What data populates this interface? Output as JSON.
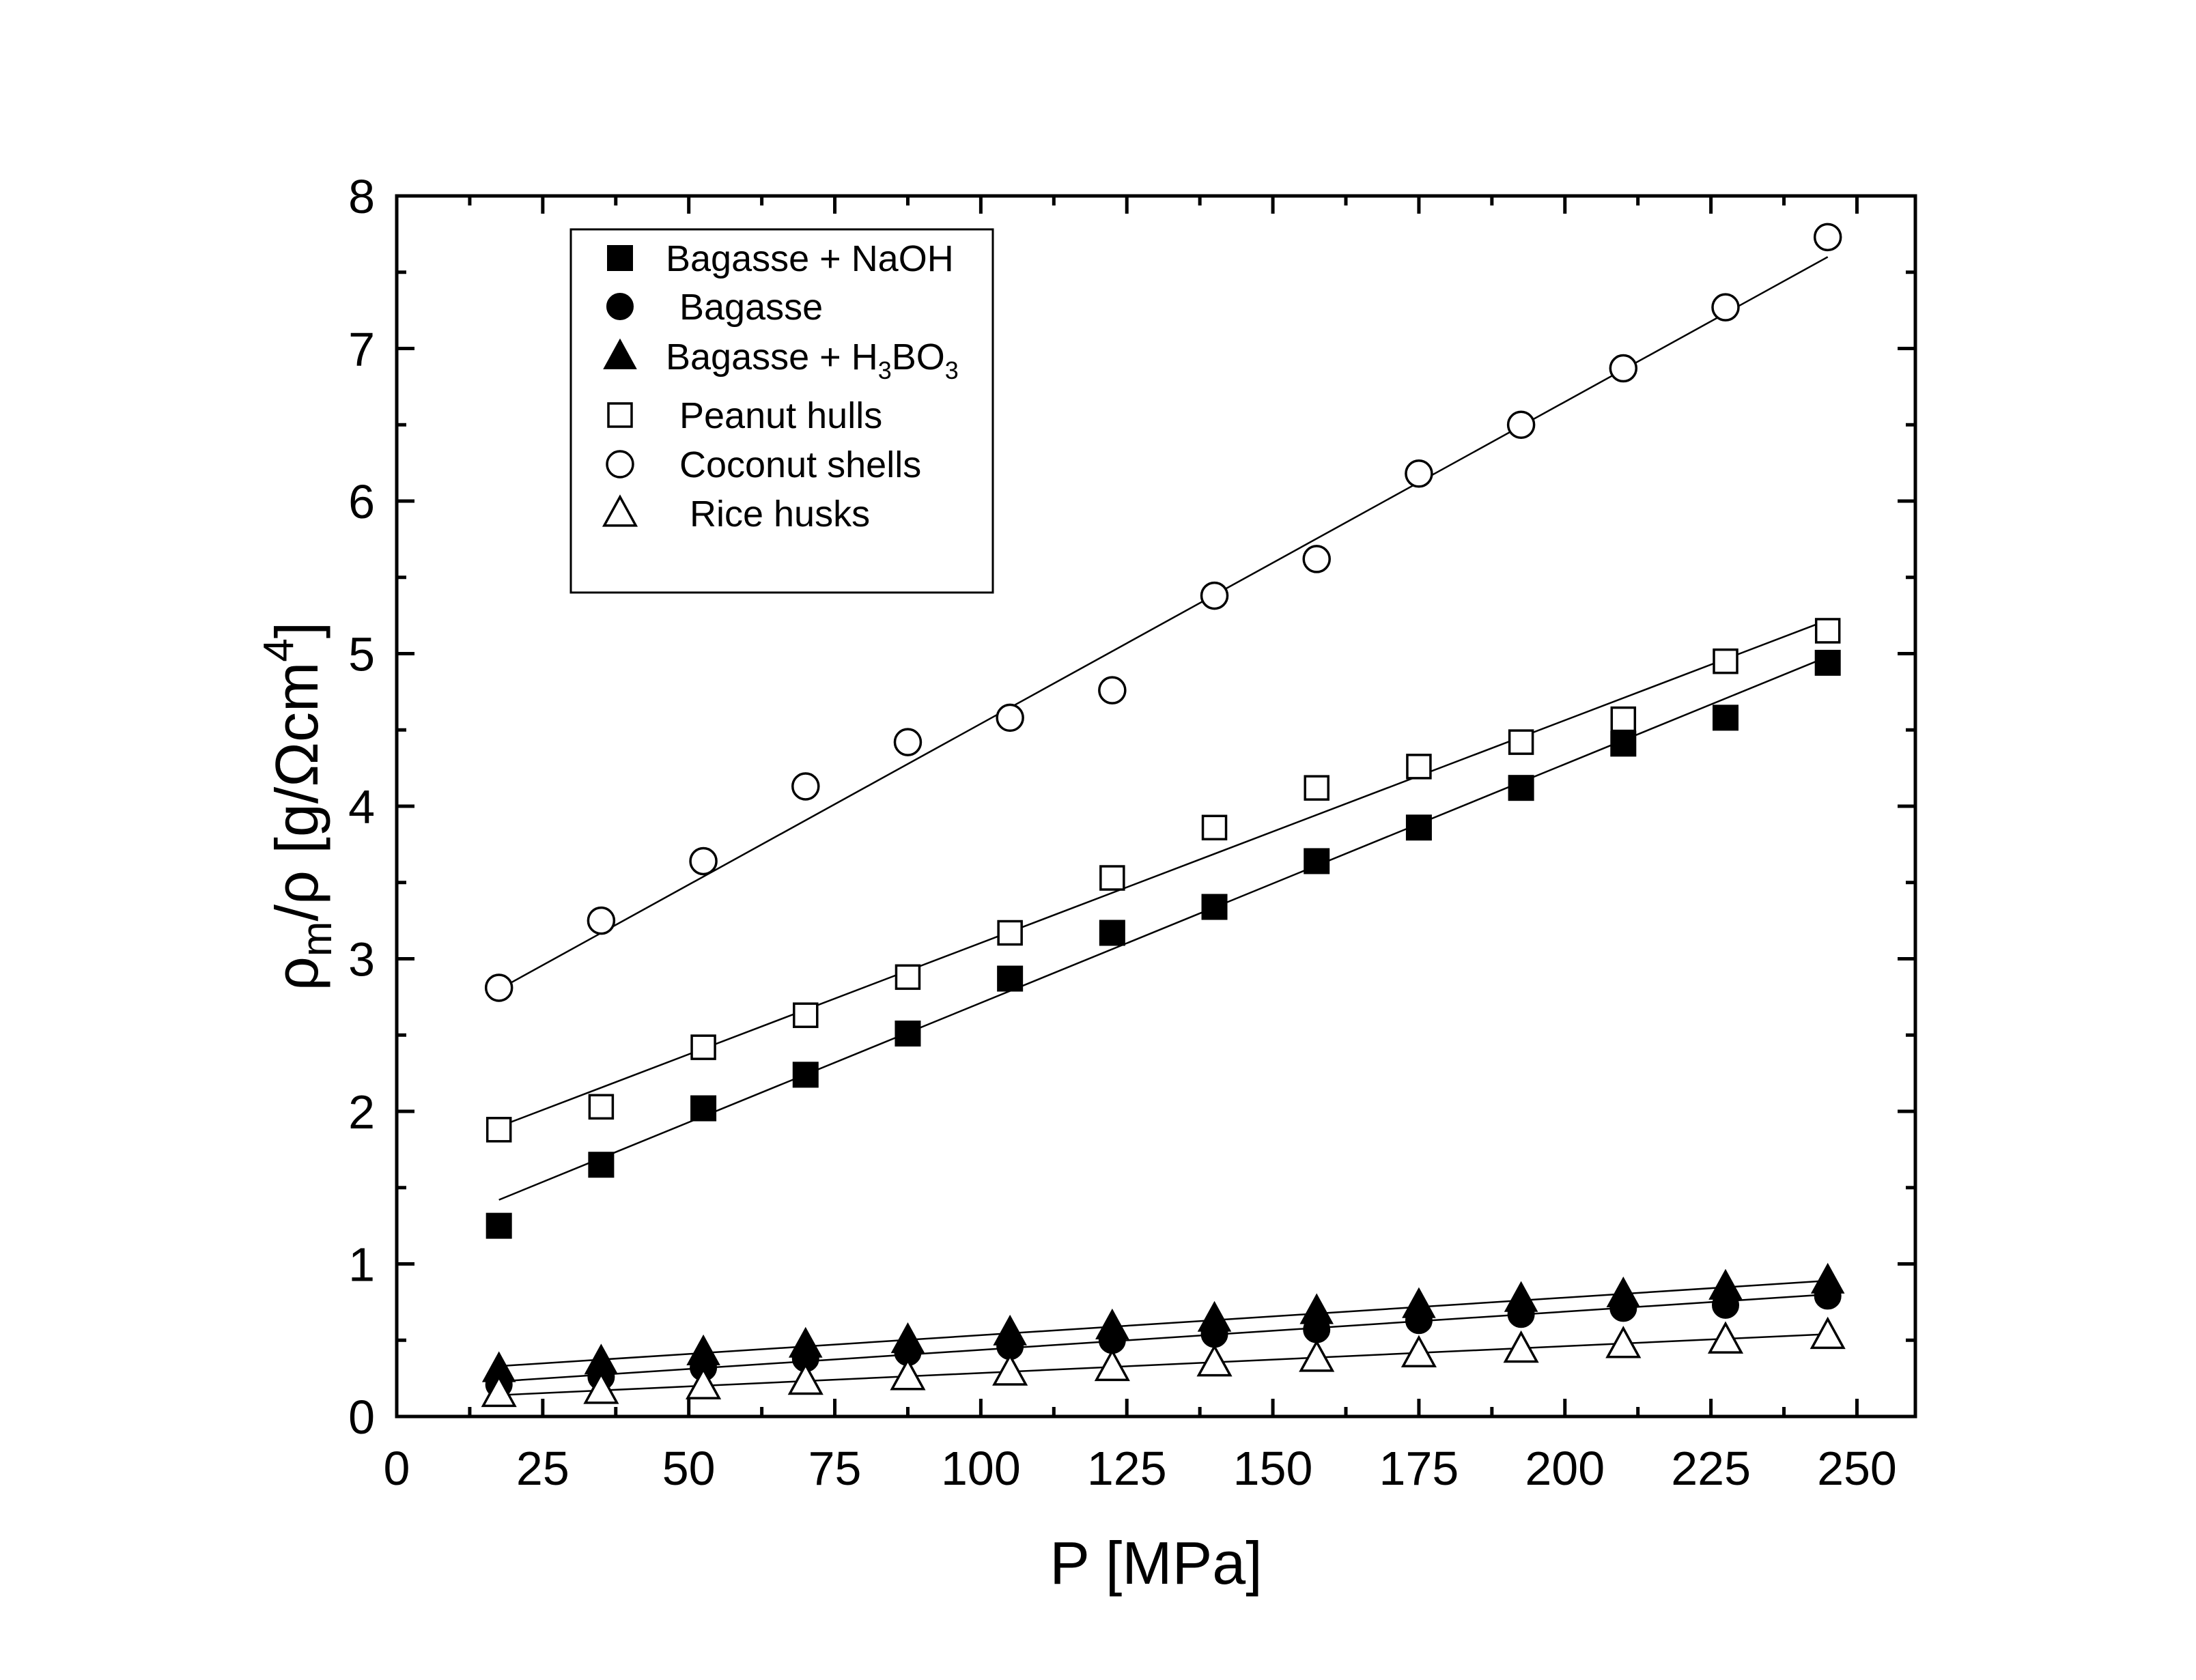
{
  "chart_data": {
    "type": "scatter",
    "title": "",
    "xlabel": "P [MPa]",
    "ylabel": {
      "main": "ρ",
      "sub": "m",
      "rest": "/ρ [g/Ωcm",
      "sup": "4",
      "end": "]"
    },
    "xlim": [
      0,
      260
    ],
    "ylim": [
      0,
      8
    ],
    "xticks": [
      0,
      25,
      50,
      75,
      100,
      125,
      150,
      175,
      200,
      225,
      250
    ],
    "yticks": [
      0,
      1,
      2,
      3,
      4,
      5,
      6,
      7,
      8
    ],
    "grid": false,
    "legend_position": "top-left",
    "x": [
      17.5,
      35,
      52.5,
      70,
      87.5,
      105,
      122.5,
      140,
      157.5,
      175,
      192.5,
      210,
      227.5,
      245
    ],
    "series": [
      {
        "name": "Bagasse + NaOH",
        "marker": "square-filled",
        "values": [
          1.25,
          1.65,
          2.02,
          2.24,
          2.51,
          2.87,
          3.17,
          3.34,
          3.64,
          3.86,
          4.12,
          4.41,
          4.58,
          4.94
        ],
        "fit": [
          1.42,
          4.98
        ]
      },
      {
        "name": "Bagasse",
        "marker": "circle-filled",
        "values": [
          0.21,
          0.26,
          0.32,
          0.38,
          0.42,
          0.46,
          0.5,
          0.54,
          0.57,
          0.63,
          0.67,
          0.71,
          0.73,
          0.79
        ],
        "fit": [
          0.23,
          0.8
        ]
      },
      {
        "name": "Bagasse + H",
        "name_sub": "3",
        "name_rest": "BO",
        "name_sub2": "3",
        "marker": "triangle-filled",
        "values": [
          0.31,
          0.36,
          0.42,
          0.47,
          0.5,
          0.55,
          0.59,
          0.64,
          0.69,
          0.73,
          0.77,
          0.8,
          0.85,
          0.89
        ],
        "fit": [
          0.33,
          0.89
        ]
      },
      {
        "name": "Peanut hulls",
        "marker": "square-open",
        "values": [
          1.88,
          2.03,
          2.42,
          2.63,
          2.88,
          3.17,
          3.53,
          3.86,
          4.12,
          4.26,
          4.42,
          4.57,
          4.95,
          5.15
        ],
        "fit": [
          1.9,
          5.22
        ]
      },
      {
        "name": "Coconut shells",
        "marker": "circle-open",
        "values": [
          2.81,
          3.25,
          3.64,
          4.13,
          4.42,
          4.58,
          4.76,
          5.38,
          5.62,
          6.18,
          6.5,
          6.87,
          7.27,
          7.73
        ],
        "fit": [
          2.8,
          7.6
        ]
      },
      {
        "name": "Rice husks",
        "marker": "triangle-open",
        "values": [
          0.15,
          0.17,
          0.2,
          0.23,
          0.26,
          0.29,
          0.32,
          0.35,
          0.38,
          0.41,
          0.44,
          0.47,
          0.5,
          0.53
        ],
        "fit": [
          0.14,
          0.54
        ]
      }
    ]
  }
}
